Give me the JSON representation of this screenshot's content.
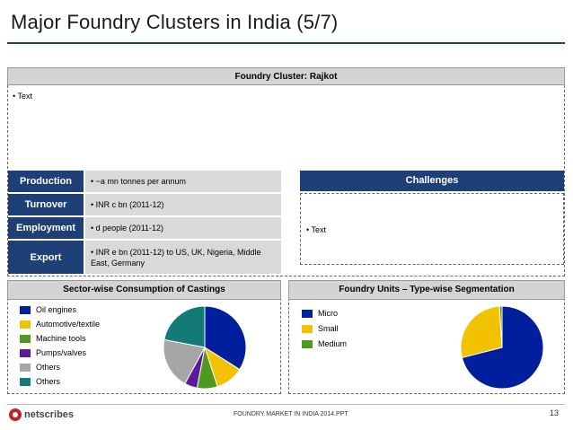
{
  "title": "Major Foundry Clusters in India (5/7)",
  "cluster": {
    "header": "Foundry Cluster: Rajkot",
    "text": "• Text"
  },
  "stats": [
    {
      "label": "Production",
      "value": "• ~a mn tonnes per annum"
    },
    {
      "label": "Turnover",
      "value": "• INR c bn (2011-12)"
    },
    {
      "label": "Employment",
      "value": "• d people (2011-12)"
    },
    {
      "label": "Export",
      "value": "• INR e bn (2011-12) to US, UK, Nigeria, Middle East, Germany"
    }
  ],
  "challenges": {
    "header": "Challenges",
    "text": "• Text"
  },
  "sector_panel": {
    "header": "Sector-wise Consumption of Castings",
    "legend": [
      {
        "label": "Oil engines",
        "color": "#001f9c"
      },
      {
        "label": "Automotive/textile",
        "color": "#f2c200"
      },
      {
        "label": "Machine tools",
        "color": "#4f9a1c"
      },
      {
        "label": "Pumps/valves",
        "color": "#5a1a9a"
      },
      {
        "label": "Others",
        "color": "#a6a6a6"
      },
      {
        "label": "Others",
        "color": "#137a78"
      }
    ]
  },
  "units_panel": {
    "header": "Foundry Units – Type-wise Segmentation",
    "legend": [
      {
        "label": "Micro",
        "color": "#001f9c"
      },
      {
        "label": "Small",
        "color": "#f2c200"
      },
      {
        "label": "Medium",
        "color": "#4f9a1c"
      }
    ]
  },
  "chart_data": [
    {
      "type": "pie",
      "title": "Sector-wise Consumption of Castings",
      "categories": [
        "Oil engines",
        "Automotive/textile",
        "Machine tools",
        "Pumps/valves",
        "Others",
        "Others"
      ],
      "values": [
        34,
        11,
        8,
        5,
        20,
        22
      ],
      "colors": [
        "#001f9c",
        "#f2c200",
        "#4f9a1c",
        "#5a1a9a",
        "#a6a6a6",
        "#137a78"
      ]
    },
    {
      "type": "pie",
      "title": "Foundry Units – Type-wise Segmentation",
      "categories": [
        "Micro",
        "Small",
        "Medium"
      ],
      "values": [
        71,
        28,
        1
      ],
      "colors": [
        "#001f9c",
        "#f2c200",
        "#4f9a1c"
      ]
    }
  ],
  "footer": {
    "logo_text": "netscribes",
    "center_text": "FOUNDRY MARKET IN INDIA 2014.PPT",
    "page_number": "13"
  }
}
